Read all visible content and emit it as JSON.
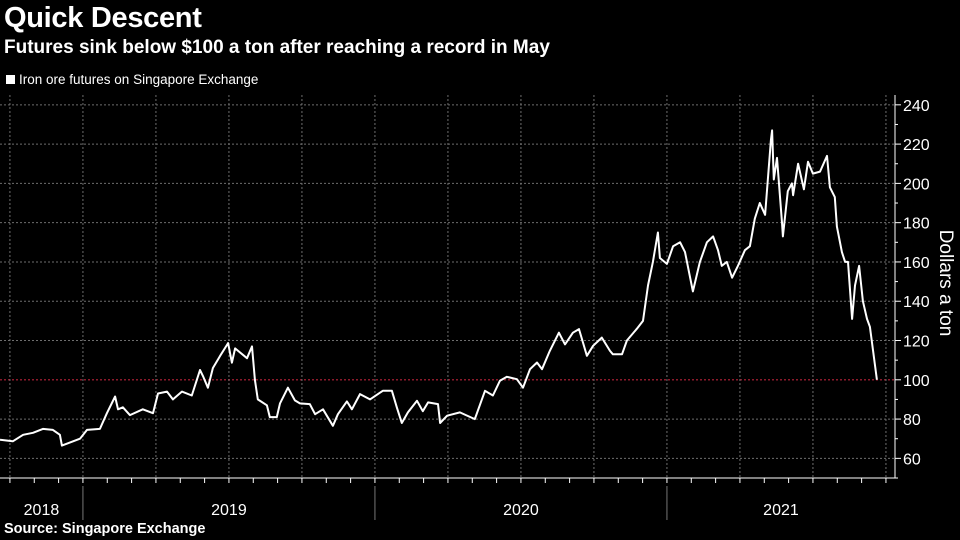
{
  "header": {
    "title": "Quick Descent",
    "subtitle": "Futures sink below $100 a ton after reaching a record in May"
  },
  "legend": {
    "label": "Iron ore futures on Singapore Exchange",
    "color": "#ffffff"
  },
  "source": "Source: Singapore Exchange",
  "chart_data": {
    "type": "line",
    "title": "Quick Descent",
    "subtitle": "Futures sink below $100 a ton after reaching a record in May",
    "xlabel": "",
    "ylabel": "Dollars a ton",
    "xlim": [
      2018.716,
      2021.781
    ],
    "ylim": [
      50,
      245
    ],
    "yticks": [
      60,
      80,
      100,
      120,
      140,
      160,
      180,
      200,
      220,
      240
    ],
    "xtick_labels": [
      "2018",
      "2019",
      "2020",
      "2021"
    ],
    "grid": true,
    "y_axis_side": "right",
    "legend_placement": "top-left",
    "reference_line": {
      "y": 100,
      "color": "#8b1a2b",
      "style": "dotted"
    },
    "colors": {
      "background": "#000000",
      "line": "#ffffff",
      "grid": "#6e6e6e"
    },
    "series": [
      {
        "name": "Iron ore futures on Singapore Exchange",
        "x": [
          2018.716,
          2018.76,
          2018.795,
          2018.829,
          2018.863,
          2018.897,
          2018.921,
          2018.928,
          2018.955,
          2018.99,
          2019.014,
          2019.058,
          2019.082,
          2019.11,
          2019.12,
          2019.137,
          2019.161,
          2019.205,
          2019.24,
          2019.257,
          2019.288,
          2019.308,
          2019.339,
          2019.373,
          2019.401,
          2019.411,
          2019.428,
          2019.445,
          2019.469,
          2019.497,
          2019.51,
          2019.521,
          2019.562,
          2019.579,
          2019.589,
          2019.599,
          2019.63,
          2019.64,
          2019.664,
          2019.675,
          2019.702,
          2019.726,
          2019.743,
          2019.777,
          2019.795,
          2019.822,
          2019.856,
          2019.873,
          2019.904,
          2019.921,
          2019.949,
          2019.983,
          2020.027,
          2020.058,
          2020.075,
          2020.092,
          2020.113,
          2020.144,
          2020.164,
          2020.182,
          2020.216,
          2020.223,
          2020.247,
          2020.291,
          2020.342,
          2020.377,
          2020.404,
          2020.428,
          2020.452,
          2020.486,
          2020.507,
          2020.531,
          2020.555,
          2020.572,
          2020.599,
          2020.63,
          2020.651,
          2020.678,
          2020.699,
          2020.726,
          2020.747,
          2020.777,
          2020.805,
          2020.815,
          2020.846,
          2020.863,
          2020.897,
          2020.918,
          2020.935,
          2020.952,
          2020.969,
          2020.976,
          2021.0,
          2021.021,
          2021.045,
          2021.062,
          2021.089,
          2021.113,
          2021.137,
          2021.158,
          2021.175,
          2021.188,
          2021.205,
          2021.223,
          2021.243,
          2021.267,
          2021.284,
          2021.301,
          2021.318,
          2021.336,
          2021.356,
          2021.36,
          2021.366,
          2021.377,
          2021.394,
          2021.397,
          2021.414,
          2021.428,
          2021.432,
          2021.449,
          2021.469,
          2021.483,
          2021.5,
          2021.524,
          2021.548,
          2021.558,
          2021.575,
          2021.582,
          2021.599,
          2021.61,
          2021.62,
          2021.634,
          2021.644,
          2021.658,
          2021.671,
          2021.685,
          2021.695,
          2021.719
        ],
        "y": [
          69.5,
          68.7,
          72,
          73,
          75,
          74.5,
          72,
          66.5,
          68,
          70,
          74.5,
          75,
          83,
          91.5,
          85,
          86,
          82,
          85,
          83,
          93,
          94,
          90,
          94,
          92,
          105,
          102,
          96,
          106,
          112,
          118.7,
          108.7,
          116,
          111,
          117,
          100,
          90,
          87,
          81,
          81,
          88,
          96,
          89.5,
          88,
          87.6,
          82.5,
          85,
          76.6,
          82.5,
          89,
          85,
          92.7,
          90,
          94.4,
          94.4,
          86,
          78,
          83.4,
          89.3,
          84,
          88.5,
          87.6,
          78,
          81.7,
          83.4,
          80,
          94.4,
          92,
          99.5,
          101.5,
          100.3,
          96,
          105.4,
          108.8,
          105.4,
          114.7,
          124,
          118,
          124,
          125.8,
          112.2,
          117.3,
          121.5,
          114.7,
          113,
          113,
          120,
          126,
          130,
          148,
          160,
          175,
          162,
          159,
          168,
          170,
          165,
          145,
          160,
          170,
          173,
          166,
          158,
          160,
          152,
          158,
          166,
          168,
          182,
          190,
          184,
          222,
          227,
          202,
          213,
          180,
          173,
          196,
          200,
          194,
          210,
          197,
          211,
          205,
          206,
          214,
          198,
          193,
          178,
          165,
          160,
          160,
          131,
          148,
          158,
          140,
          131,
          127,
          100
        ]
      }
    ]
  }
}
